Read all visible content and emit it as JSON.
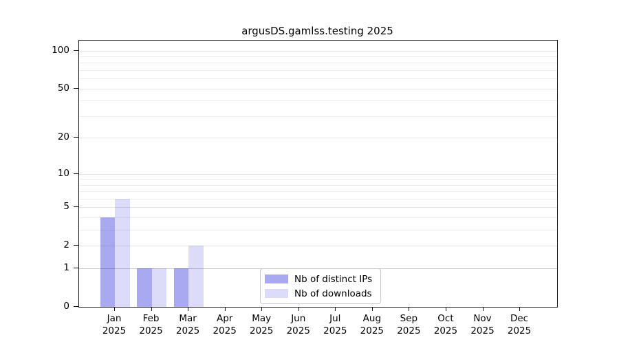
{
  "chart_data": {
    "type": "bar",
    "title": "argusDS.gamlss.testing 2025",
    "categories": [
      "Jan",
      "Feb",
      "Mar",
      "Apr",
      "May",
      "Jun",
      "Jul",
      "Aug",
      "Sep",
      "Oct",
      "Nov",
      "Dec"
    ],
    "x_year_label": "2025",
    "series": [
      {
        "name": "Nb of distinct IPs",
        "color": "#a9a9f2",
        "values": [
          4,
          1,
          1,
          0,
          0,
          0,
          0,
          0,
          0,
          0,
          0,
          0
        ]
      },
      {
        "name": "Nb of downloads",
        "color": "#dcdcf8",
        "values": [
          6,
          1,
          2,
          0,
          0,
          0,
          0,
          0,
          0,
          0,
          0,
          0
        ]
      }
    ],
    "y_scale": "log10(value+1)",
    "y_ticks_labeled": [
      0,
      1,
      2,
      5,
      10,
      20,
      50,
      100
    ],
    "y_ticks_minor": [
      3,
      4,
      6,
      7,
      8,
      9,
      30,
      40,
      60,
      70,
      80,
      90
    ],
    "ylim": [
      0,
      120
    ],
    "grid": "horizontal",
    "legend_position": "bottom-center",
    "axis_color": "#000000",
    "background_color": "#ffffff"
  }
}
